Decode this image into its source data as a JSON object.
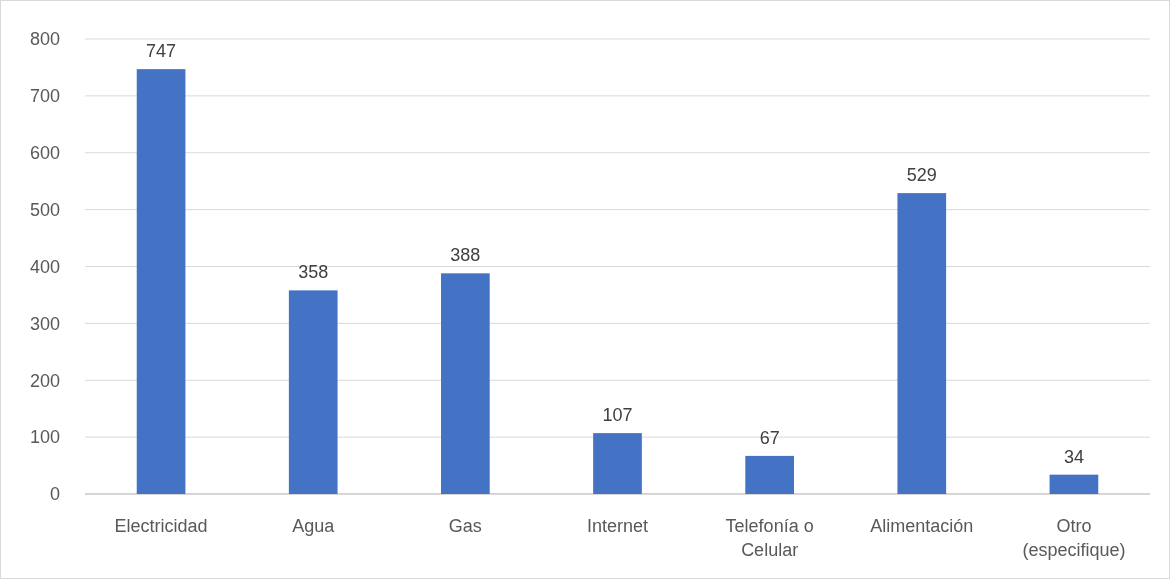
{
  "chart_data": {
    "type": "bar",
    "categories": [
      "Electricidad",
      "Agua",
      "Gas",
      "Internet",
      "Telefonía o Celular",
      "Alimentación",
      "Otro (especifique)"
    ],
    "values": [
      747,
      358,
      388,
      107,
      67,
      529,
      34
    ],
    "color": "#4472c4",
    "ylim": [
      0,
      800
    ],
    "yticks": [
      0,
      100,
      200,
      300,
      400,
      500,
      600,
      700,
      800
    ],
    "grid": "y",
    "data_labels": true
  }
}
